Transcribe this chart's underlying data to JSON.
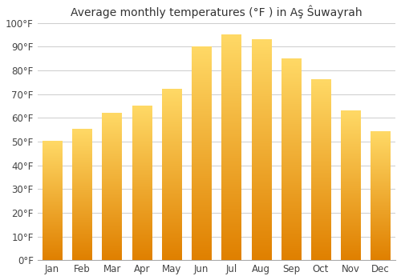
{
  "title": "Average monthly temperatures (°F ) in Aş Ŝuwayrah",
  "months": [
    "Jan",
    "Feb",
    "Mar",
    "Apr",
    "May",
    "Jun",
    "Jul",
    "Aug",
    "Sep",
    "Oct",
    "Nov",
    "Dec"
  ],
  "values": [
    50,
    55,
    62,
    65,
    72,
    90,
    95,
    93,
    85,
    76,
    63,
    54
  ],
  "bar_color_light": "#FFD966",
  "bar_color_dark": "#E08000",
  "ylim": [
    0,
    100
  ],
  "yticks": [
    0,
    10,
    20,
    30,
    40,
    50,
    60,
    70,
    80,
    90,
    100
  ],
  "ytick_labels": [
    "0°F",
    "10°F",
    "20°F",
    "30°F",
    "40°F",
    "50°F",
    "60°F",
    "70°F",
    "80°F",
    "90°F",
    "100°F"
  ],
  "background_color": "#ffffff",
  "grid_color": "#cccccc",
  "title_fontsize": 10,
  "tick_fontsize": 8.5,
  "bar_width": 0.65,
  "figsize": [
    5.0,
    3.5
  ],
  "dpi": 100
}
